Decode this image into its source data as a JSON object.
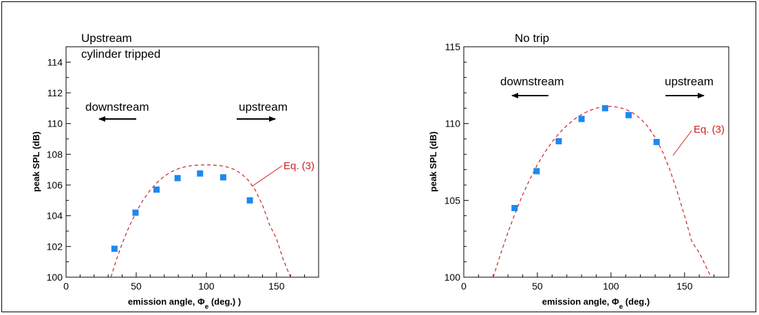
{
  "chart_data": [
    {
      "type": "scatter",
      "annotations": {
        "line1": "Upstream",
        "line2": "cylinder tripped"
      },
      "xlabel": "emission angle, Φe (deg.) )",
      "xlabel_main": "emission angle, Φ",
      "xlabel_sub": "e",
      "xlabel_tail": " (deg.) )",
      "ylabel": "peak SPL (dB)",
      "xlim": [
        0,
        180
      ],
      "ylim": [
        100,
        115
      ],
      "xticks": [
        0,
        50,
        100,
        150
      ],
      "yticks": [
        100,
        102,
        104,
        106,
        108,
        110,
        112,
        114
      ],
      "downstream_label": "downstream",
      "upstream_label": "upstream",
      "curve_label": "Eq. (3)",
      "series": [
        {
          "kind": "markers",
          "color": "#1e88f0",
          "x": [
            34.5,
            49.5,
            64.5,
            79.5,
            95.5,
            112,
            131
          ],
          "y": [
            101.85,
            104.2,
            105.7,
            106.45,
            106.75,
            106.5,
            105.0
          ]
        },
        {
          "kind": "dashed",
          "color": "#cc1f1f",
          "x": [
            32,
            36,
            40,
            45,
            50,
            55,
            60,
            65,
            70,
            75,
            80,
            85,
            90,
            95,
            100,
            105,
            110,
            115,
            120,
            125,
            130,
            135,
            140,
            145,
            150,
            155,
            160
          ],
          "y": [
            100.0,
            101.17,
            102.2,
            103.3,
            104.24,
            105.03,
            105.67,
            106.18,
            106.57,
            106.86,
            107.06,
            107.19,
            107.27,
            107.3,
            107.31,
            107.3,
            107.26,
            107.17,
            107.01,
            106.73,
            106.3,
            105.64,
            104.7,
            103.43,
            102.5,
            101.1,
            100.0
          ]
        }
      ]
    },
    {
      "type": "scatter",
      "annotations": {
        "line1": "No trip"
      },
      "xlabel": "emission angle, Φe (deg.)",
      "xlabel_main": "emission angle, Φ",
      "xlabel_sub": "e",
      "xlabel_tail": " (deg.)",
      "ylabel": "peak SPL (dB)",
      "xlim": [
        0,
        180
      ],
      "ylim": [
        100,
        115
      ],
      "xticks": [
        0,
        50,
        100,
        150
      ],
      "yticks": [
        100,
        105,
        110,
        115
      ],
      "downstream_label": "downstream",
      "upstream_label": "upstream",
      "curve_label": "Eq. (3)",
      "series": [
        {
          "kind": "markers",
          "color": "#1e88f0",
          "x": [
            34.5,
            49.5,
            64.5,
            80,
            96,
            112,
            131
          ],
          "y": [
            104.5,
            106.9,
            108.85,
            110.3,
            111.0,
            110.55,
            108.8
          ]
        },
        {
          "kind": "dashed",
          "color": "#cc1f1f",
          "x": [
            20,
            25,
            30,
            35,
            40,
            45,
            50,
            55,
            60,
            65,
            70,
            75,
            80,
            85,
            90,
            95,
            100,
            105,
            110,
            115,
            120,
            125,
            130,
            135,
            140,
            145,
            150,
            155,
            160,
            165,
            168
          ],
          "y": [
            100.0,
            101.52,
            102.92,
            104.2,
            105.37,
            106.4,
            107.32,
            108.12,
            108.81,
            109.39,
            109.87,
            110.27,
            110.59,
            110.83,
            111.0,
            111.1,
            111.12,
            111.07,
            110.93,
            110.69,
            110.33,
            109.81,
            109.1,
            108.17,
            107.0,
            105.58,
            104.0,
            102.3,
            101.6,
            100.6,
            100.0
          ]
        }
      ]
    }
  ]
}
